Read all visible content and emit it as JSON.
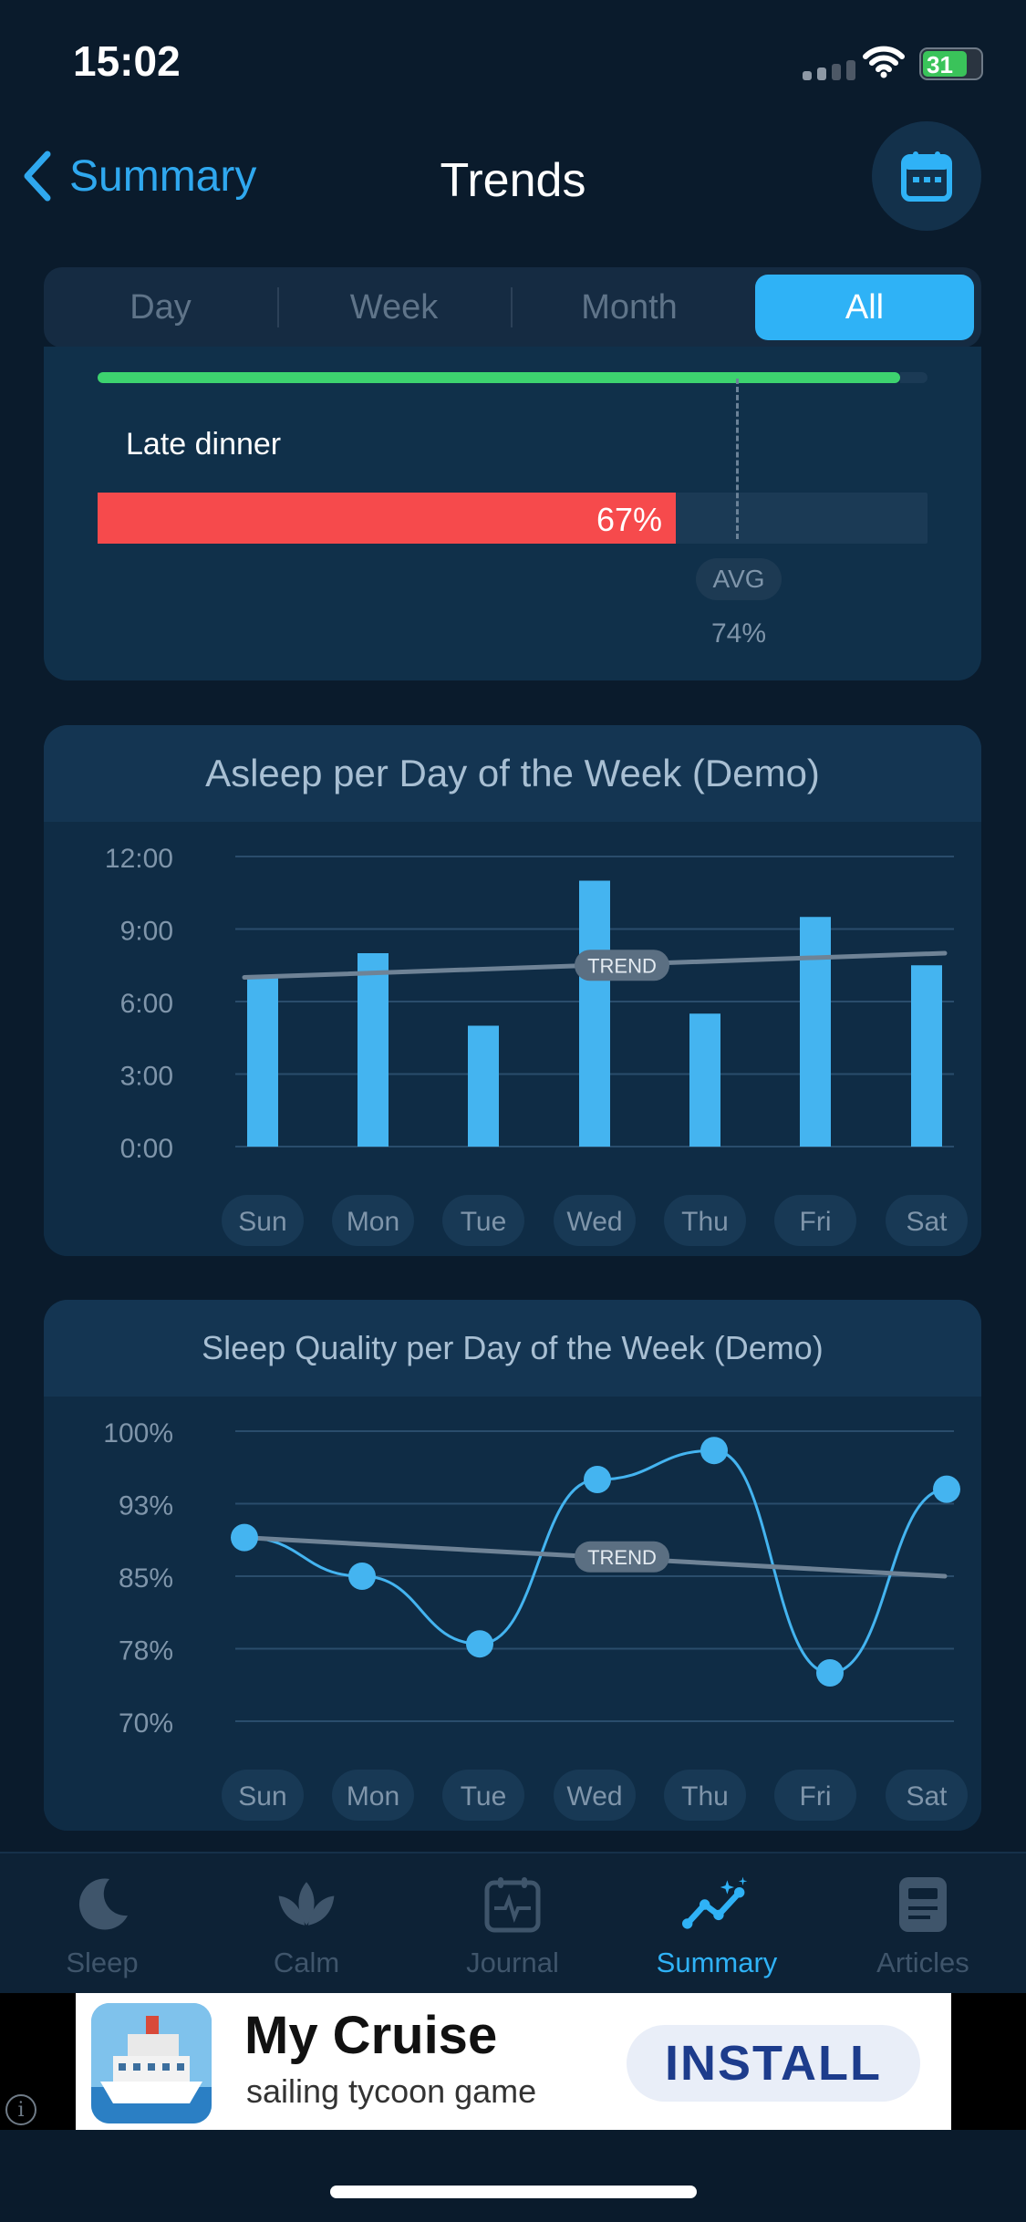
{
  "status_bar": {
    "time": "15:02",
    "battery": "31"
  },
  "nav": {
    "back_label": "Summary",
    "title": "Trends"
  },
  "segments": [
    "Day",
    "Week",
    "Month",
    "All"
  ],
  "selected_segment": "All",
  "factor_card": {
    "label": "Late dinner",
    "value_label": "67%",
    "value": 67,
    "avg_badge": "AVG",
    "avg_value_label": "74%",
    "avg_value": 74
  },
  "chart_data": [
    {
      "type": "bar",
      "title": "Asleep per Day of the Week (Demo)",
      "categories": [
        "Sun",
        "Mon",
        "Tue",
        "Wed",
        "Thu",
        "Fri",
        "Sat"
      ],
      "values": [
        7.0,
        8.0,
        5.0,
        11.0,
        5.5,
        9.5,
        7.5
      ],
      "yticks": [
        "12:00",
        "9:00",
        "6:00",
        "3:00",
        "0:00"
      ],
      "ylim": [
        0,
        12
      ],
      "trend": {
        "label": "TREND",
        "start": 7.0,
        "end": 8.0
      }
    },
    {
      "type": "line",
      "title": "Sleep Quality per Day of the Week (Demo)",
      "categories": [
        "Sun",
        "Mon",
        "Tue",
        "Wed",
        "Thu",
        "Fri",
        "Sat"
      ],
      "values": [
        89,
        85,
        78,
        95,
        98,
        75,
        94
      ],
      "yticks": [
        "100%",
        "93%",
        "85%",
        "78%",
        "70%"
      ],
      "ylim": [
        70,
        100
      ],
      "trend": {
        "label": "TREND",
        "start": 89,
        "end": 85
      }
    }
  ],
  "tabs": [
    {
      "label": "Sleep",
      "icon": "moon-icon"
    },
    {
      "label": "Calm",
      "icon": "lotus-icon"
    },
    {
      "label": "Journal",
      "icon": "journal-icon"
    },
    {
      "label": "Summary",
      "icon": "trend-chart-icon"
    },
    {
      "label": "Articles",
      "icon": "articles-icon"
    }
  ],
  "active_tab": "Summary",
  "ad": {
    "title": "My Cruise",
    "subtitle": "sailing tycoon game",
    "cta": "INSTALL",
    "info": "i"
  },
  "colors": {
    "accent": "#2fb2f6",
    "bar": "#44b4f0",
    "negative": "#f64a4c",
    "positive": "#3dd36f"
  }
}
